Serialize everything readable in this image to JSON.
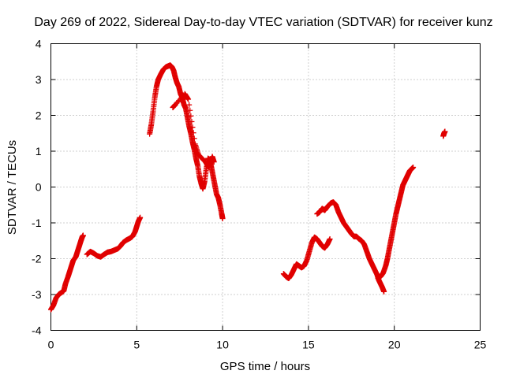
{
  "chart_data": {
    "type": "scatter",
    "title": "Day 269 of 2022, Sidereal Day-to-day VTEC variation (SDTVAR) for receiver kunz",
    "xlabel": "GPS time / hours",
    "ylabel": "SDTVAR / TECUs",
    "xlim": [
      0,
      25
    ],
    "ylim": [
      -4,
      4
    ],
    "xticks": [
      0,
      5,
      10,
      15,
      20,
      25
    ],
    "yticks": [
      -4,
      -3,
      -2,
      -1,
      0,
      1,
      2,
      3,
      4
    ],
    "grid": true,
    "marker": "+",
    "color": "#ff0000",
    "series": [
      {
        "name": "SDTVAR",
        "segments": [
          [
            [
              0.0,
              -3.42
            ],
            [
              0.15,
              -3.3
            ],
            [
              0.3,
              -3.1
            ],
            [
              0.45,
              -3.0
            ],
            [
              0.6,
              -2.95
            ],
            [
              0.75,
              -2.9
            ],
            [
              0.85,
              -2.7
            ],
            [
              1.0,
              -2.5
            ],
            [
              1.1,
              -2.35
            ],
            [
              1.2,
              -2.2
            ],
            [
              1.3,
              -2.05
            ],
            [
              1.45,
              -1.95
            ],
            [
              1.55,
              -1.8
            ],
            [
              1.65,
              -1.65
            ],
            [
              1.75,
              -1.5
            ],
            [
              1.82,
              -1.4
            ],
            [
              1.88,
              -1.35
            ]
          ],
          [
            [
              2.1,
              -1.88
            ],
            [
              2.3,
              -1.8
            ],
            [
              2.5,
              -1.85
            ],
            [
              2.7,
              -1.92
            ],
            [
              2.9,
              -1.95
            ],
            [
              3.1,
              -1.88
            ],
            [
              3.3,
              -1.82
            ],
            [
              3.5,
              -1.8
            ],
            [
              3.7,
              -1.76
            ],
            [
              3.9,
              -1.72
            ],
            [
              4.05,
              -1.65
            ],
            [
              4.2,
              -1.55
            ],
            [
              4.4,
              -1.48
            ],
            [
              4.6,
              -1.43
            ],
            [
              4.75,
              -1.38
            ],
            [
              4.9,
              -1.25
            ],
            [
              5.0,
              -1.1
            ],
            [
              5.1,
              -0.95
            ],
            [
              5.2,
              -0.85
            ]
          ],
          [
            [
              5.75,
              1.48
            ],
            [
              5.85,
              1.75
            ],
            [
              5.95,
              2.1
            ],
            [
              6.05,
              2.5
            ],
            [
              6.15,
              2.8
            ],
            [
              6.25,
              3.0
            ],
            [
              6.4,
              3.15
            ],
            [
              6.55,
              3.28
            ],
            [
              6.7,
              3.35
            ],
            [
              6.85,
              3.38
            ],
            [
              6.95,
              3.4
            ],
            [
              7.05,
              3.35
            ],
            [
              7.15,
              3.25
            ],
            [
              7.25,
              3.05
            ],
            [
              7.35,
              2.9
            ],
            [
              7.45,
              2.8
            ],
            [
              7.55,
              2.6
            ],
            [
              7.65,
              2.5
            ],
            [
              7.75,
              2.3
            ],
            [
              7.85,
              2.2
            ],
            [
              7.95,
              1.95
            ],
            [
              8.05,
              1.7
            ],
            [
              8.15,
              1.5
            ],
            [
              8.25,
              1.25
            ],
            [
              8.35,
              1.05
            ],
            [
              8.45,
              0.8
            ],
            [
              8.55,
              0.6
            ],
            [
              8.65,
              0.3
            ],
            [
              8.75,
              0.1
            ],
            [
              8.85,
              -0.05
            ],
            [
              8.95,
              0.15
            ],
            [
              9.05,
              0.5
            ],
            [
              9.15,
              0.8
            ],
            [
              9.25,
              0.75
            ],
            [
              9.35,
              0.55
            ],
            [
              9.45,
              0.3
            ],
            [
              9.55,
              0.05
            ],
            [
              9.65,
              -0.2
            ],
            [
              9.75,
              -0.3
            ],
            [
              9.85,
              -0.5
            ],
            [
              9.95,
              -0.75
            ],
            [
              10.0,
              -0.88
            ]
          ],
          [
            [
              7.1,
              2.22
            ],
            [
              7.25,
              2.3
            ],
            [
              7.8,
              2.6
            ],
            [
              8.0,
              2.45
            ],
            [
              8.4,
              1.2
            ],
            [
              8.6,
              0.9
            ],
            [
              9.0,
              0.7
            ],
            [
              9.2,
              0.55
            ],
            [
              9.4,
              0.85
            ],
            [
              9.5,
              0.7
            ]
          ],
          [
            [
              13.55,
              -2.42
            ],
            [
              13.7,
              -2.5
            ],
            [
              13.85,
              -2.55
            ],
            [
              14.0,
              -2.45
            ],
            [
              14.15,
              -2.3
            ],
            [
              14.3,
              -2.15
            ],
            [
              14.45,
              -2.2
            ],
            [
              14.6,
              -2.25
            ],
            [
              14.75,
              -2.2
            ],
            [
              14.9,
              -2.05
            ],
            [
              15.05,
              -1.8
            ],
            [
              15.2,
              -1.55
            ],
            [
              15.35,
              -1.4
            ],
            [
              15.5,
              -1.45
            ],
            [
              15.65,
              -1.55
            ],
            [
              15.8,
              -1.65
            ],
            [
              15.95,
              -1.7
            ],
            [
              16.1,
              -1.6
            ],
            [
              16.25,
              -1.45
            ]
          ],
          [
            [
              15.5,
              -0.75
            ],
            [
              15.65,
              -0.7
            ],
            [
              15.8,
              -0.6
            ],
            [
              15.95,
              -0.65
            ],
            [
              16.1,
              -0.55
            ],
            [
              16.3,
              -0.45
            ],
            [
              16.45,
              -0.42
            ],
            [
              16.6,
              -0.5
            ],
            [
              16.75,
              -0.7
            ],
            [
              16.9,
              -0.85
            ],
            [
              17.05,
              -1.0
            ],
            [
              17.2,
              -1.1
            ],
            [
              17.35,
              -1.2
            ],
            [
              17.5,
              -1.3
            ],
            [
              17.65,
              -1.38
            ],
            [
              17.8,
              -1.38
            ],
            [
              17.95,
              -1.45
            ],
            [
              18.1,
              -1.5
            ],
            [
              18.25,
              -1.6
            ],
            [
              18.4,
              -1.8
            ],
            [
              18.55,
              -2.0
            ],
            [
              18.7,
              -2.15
            ],
            [
              18.85,
              -2.3
            ],
            [
              19.0,
              -2.45
            ],
            [
              19.1,
              -2.6
            ],
            [
              19.2,
              -2.7
            ],
            [
              19.3,
              -2.8
            ],
            [
              19.4,
              -2.92
            ]
          ],
          [
            [
              19.05,
              -2.55
            ],
            [
              19.2,
              -2.5
            ],
            [
              19.35,
              -2.4
            ],
            [
              19.5,
              -2.2
            ],
            [
              19.6,
              -2.0
            ],
            [
              19.7,
              -1.75
            ],
            [
              19.8,
              -1.5
            ],
            [
              19.9,
              -1.25
            ],
            [
              20.0,
              -1.0
            ],
            [
              20.1,
              -0.75
            ],
            [
              20.2,
              -0.55
            ],
            [
              20.3,
              -0.35
            ],
            [
              20.4,
              -0.15
            ],
            [
              20.5,
              0.05
            ],
            [
              20.6,
              0.15
            ],
            [
              20.7,
              0.25
            ],
            [
              20.8,
              0.35
            ],
            [
              20.9,
              0.45
            ],
            [
              21.0,
              0.5
            ],
            [
              21.1,
              0.55
            ]
          ],
          [
            [
              22.85,
              1.42
            ],
            [
              22.9,
              1.5
            ],
            [
              22.95,
              1.55
            ]
          ]
        ]
      }
    ]
  }
}
